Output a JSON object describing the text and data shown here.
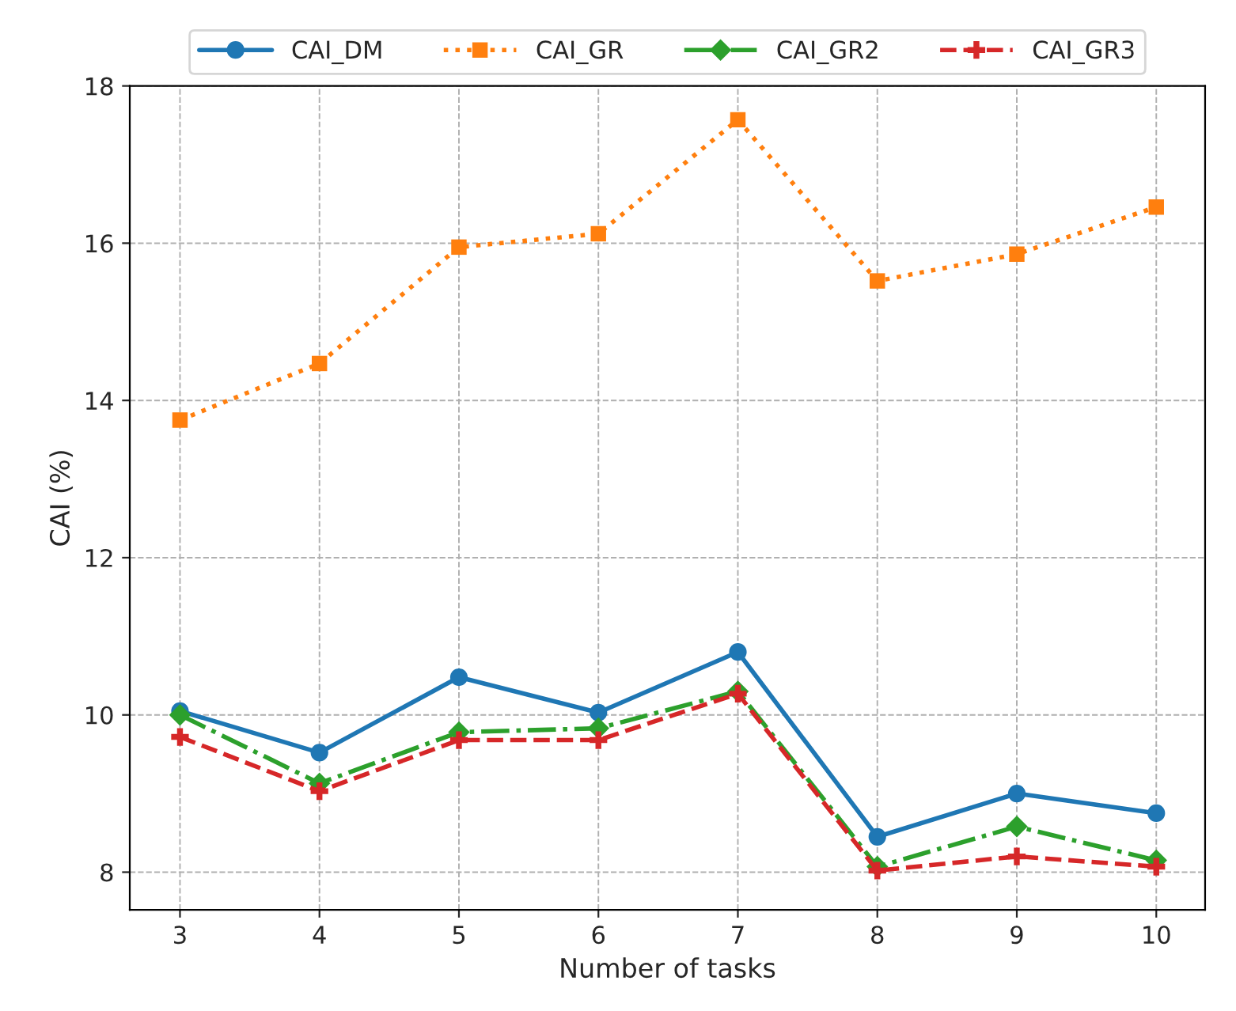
{
  "chart_data": {
    "type": "line",
    "xlabel": "Number of tasks",
    "ylabel": "CAI (%)",
    "x": [
      3,
      4,
      5,
      6,
      7,
      8,
      9,
      10
    ],
    "series": [
      {
        "name": "CAI_DM",
        "color": "#1f77b4",
        "marker": "circle",
        "line_style": "solid",
        "values": [
          10.05,
          9.52,
          10.48,
          10.03,
          10.8,
          8.45,
          9.0,
          8.75
        ]
      },
      {
        "name": "CAI_GR",
        "color": "#ff7f0e",
        "marker": "square",
        "line_style": "dotted",
        "values": [
          13.75,
          14.47,
          15.95,
          16.12,
          17.57,
          15.52,
          15.86,
          16.46
        ]
      },
      {
        "name": "CAI_GR2",
        "color": "#2ca02c",
        "marker": "diamond",
        "line_style": "dashdot",
        "values": [
          10.0,
          9.13,
          9.78,
          9.83,
          10.3,
          8.07,
          8.58,
          8.15
        ]
      },
      {
        "name": "CAI_GR3",
        "color": "#d62728",
        "marker": "plus",
        "line_style": "dashed",
        "values": [
          9.72,
          9.03,
          9.68,
          9.68,
          10.27,
          8.02,
          8.2,
          8.07
        ]
      }
    ],
    "xlim": [
      2.64,
      10.35
    ],
    "ylim": [
      7.52,
      18.0
    ],
    "xticks": [
      3,
      4,
      5,
      6,
      7,
      8,
      9,
      10
    ],
    "yticks": [
      8,
      10,
      12,
      14,
      16,
      18
    ],
    "grid": true,
    "legend": "top"
  }
}
